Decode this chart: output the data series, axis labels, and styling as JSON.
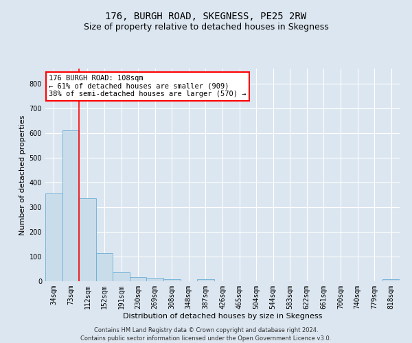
{
  "title": "176, BURGH ROAD, SKEGNESS, PE25 2RW",
  "subtitle": "Size of property relative to detached houses in Skegness",
  "xlabel": "Distribution of detached houses by size in Skegness",
  "ylabel": "Number of detached properties",
  "footer_line1": "Contains HM Land Registry data © Crown copyright and database right 2024.",
  "footer_line2": "Contains public sector information licensed under the Open Government Licence v3.0.",
  "bin_labels": [
    "34sqm",
    "73sqm",
    "112sqm",
    "152sqm",
    "191sqm",
    "230sqm",
    "269sqm",
    "308sqm",
    "348sqm",
    "387sqm",
    "426sqm",
    "465sqm",
    "504sqm",
    "544sqm",
    "583sqm",
    "622sqm",
    "661sqm",
    "700sqm",
    "740sqm",
    "779sqm",
    "818sqm"
  ],
  "bar_values": [
    355,
    611,
    335,
    113,
    36,
    18,
    13,
    8,
    0,
    8,
    0,
    0,
    0,
    0,
    0,
    0,
    0,
    0,
    0,
    0,
    7
  ],
  "bar_color": "#c9dcea",
  "bar_edge_color": "#6aaed6",
  "ylim": [
    0,
    860
  ],
  "yticks": [
    0,
    100,
    200,
    300,
    400,
    500,
    600,
    700,
    800
  ],
  "red_line_bin": 2,
  "annotation_line1": "176 BURGH ROAD: 108sqm",
  "annotation_line2": "← 61% of detached houses are smaller (909)",
  "annotation_line3": "38% of semi-detached houses are larger (570) →",
  "annotation_box_color": "white",
  "annotation_box_edge_color": "red",
  "red_line_color": "red",
  "background_color": "#dce6f0",
  "plot_background_color": "#dce6f0",
  "grid_color": "white",
  "title_fontsize": 10,
  "subtitle_fontsize": 9,
  "axis_label_fontsize": 8,
  "tick_fontsize": 7,
  "annotation_fontsize": 7.5,
  "footer_fontsize": 6
}
